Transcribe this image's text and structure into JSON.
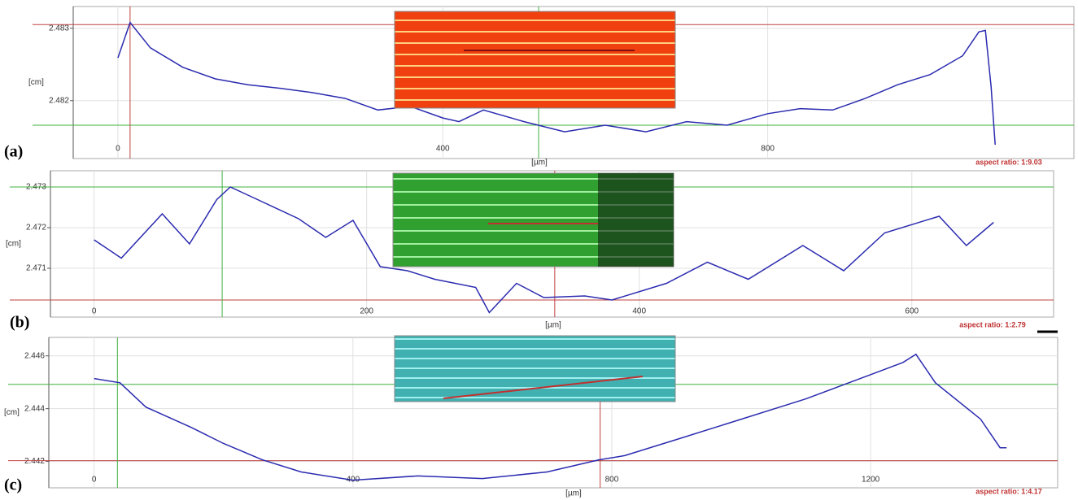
{
  "chart_data": [
    {
      "type": "line",
      "panel_label": "(a)",
      "annotation": "aspect ratio: 1:9.03",
      "xlabel": "[µm]",
      "ylabel": "[cm]",
      "xlim": [
        -55,
        1177
      ],
      "ylim": [
        2.4812,
        2.4833
      ],
      "xticks": [
        0,
        400,
        800
      ],
      "yticks": [
        2.482,
        2.483
      ],
      "grid": true,
      "x": [
        0,
        15,
        40,
        80,
        120,
        160,
        200,
        240,
        280,
        320,
        360,
        400,
        420,
        450,
        500,
        550,
        600,
        650,
        700,
        750,
        800,
        840,
        880,
        920,
        960,
        1000,
        1040,
        1060,
        1068,
        1075,
        1080
      ],
      "values": [
        2.48259,
        2.48308,
        2.48273,
        2.48246,
        2.4823,
        2.48222,
        2.48217,
        2.48211,
        2.48203,
        2.48187,
        2.48192,
        2.48176,
        2.48171,
        2.48187,
        2.48171,
        2.48157,
        2.48166,
        2.48157,
        2.48171,
        2.48166,
        2.48182,
        2.48189,
        2.48187,
        2.48203,
        2.48222,
        2.48236,
        2.48262,
        2.48295,
        2.48297,
        2.48219,
        2.48139
      ],
      "color": "#2b2bb0",
      "vlines": [
        {
          "value": 15,
          "color": "#c04040"
        },
        {
          "value": 518,
          "color": "#40b040"
        }
      ],
      "hlines": [
        {
          "value": 2.48305,
          "color": "#c04040"
        },
        {
          "value": 2.48166,
          "color": "#40b040"
        }
      ]
    },
    {
      "type": "line",
      "panel_label": "(b)",
      "annotation": "aspect ratio: 1:2.79",
      "xlabel": "[µm]",
      "ylabel": "[cm]",
      "xlim": [
        -32,
        704
      ],
      "ylim": [
        2.4698,
        2.4734
      ],
      "xticks": [
        0,
        200,
        400,
        600
      ],
      "yticks": [
        2.471,
        2.472,
        2.473
      ],
      "grid": true,
      "x": [
        0,
        20,
        50,
        70,
        90,
        100,
        120,
        150,
        170,
        190,
        210,
        230,
        250,
        280,
        290,
        310,
        330,
        360,
        380,
        420,
        450,
        480,
        520,
        550,
        580,
        620,
        640,
        660
      ],
      "values": [
        2.4717,
        2.47125,
        2.47234,
        2.4716,
        2.47269,
        2.473,
        2.47269,
        2.47222,
        2.47176,
        2.47218,
        2.47104,
        2.47094,
        2.47073,
        2.47053,
        2.46991,
        2.47063,
        2.47028,
        2.47032,
        2.47022,
        2.47063,
        2.47115,
        2.47073,
        2.47156,
        2.47094,
        2.47187,
        2.47228,
        2.47156,
        2.47213
      ],
      "color": "#2b2bb0",
      "vlines": [
        {
          "value": 94,
          "color": "#40b040"
        },
        {
          "value": 338,
          "color": "#c04040"
        }
      ],
      "hlines": [
        {
          "value": 2.473,
          "color": "#40b040"
        },
        {
          "value": 2.47022,
          "color": "#c04040"
        }
      ]
    },
    {
      "type": "line",
      "panel_label": "(c)",
      "annotation": "aspect ratio: 1:4.17",
      "xlabel": "[µm]",
      "ylabel": "[cm]",
      "xlim": [
        -70,
        1489
      ],
      "ylim": [
        2.441,
        2.4467
      ],
      "xticks": [
        0,
        400,
        800,
        1200
      ],
      "yticks": [
        2.442,
        2.444,
        2.446
      ],
      "grid": true,
      "x": [
        0,
        40,
        80,
        150,
        200,
        260,
        320,
        400,
        500,
        600,
        700,
        780,
        820,
        900,
        1000,
        1100,
        1200,
        1250,
        1270,
        1300,
        1370,
        1400,
        1410
      ],
      "values": [
        2.44514,
        2.44498,
        2.44406,
        2.44329,
        2.44268,
        2.44206,
        2.4416,
        2.44129,
        2.44145,
        2.44135,
        2.4416,
        2.44206,
        2.44222,
        2.44283,
        2.4436,
        2.44437,
        2.44529,
        2.44575,
        2.44606,
        2.44498,
        2.4436,
        2.44252,
        2.44252
      ],
      "color": "#2b2bb0",
      "vlines": [
        {
          "value": 36,
          "color": "#40b040"
        },
        {
          "value": 782,
          "color": "#c04040"
        }
      ],
      "hlines": [
        {
          "value": 2.44492,
          "color": "#40b040"
        },
        {
          "value": 2.44203,
          "color": "#c04040"
        }
      ]
    }
  ]
}
